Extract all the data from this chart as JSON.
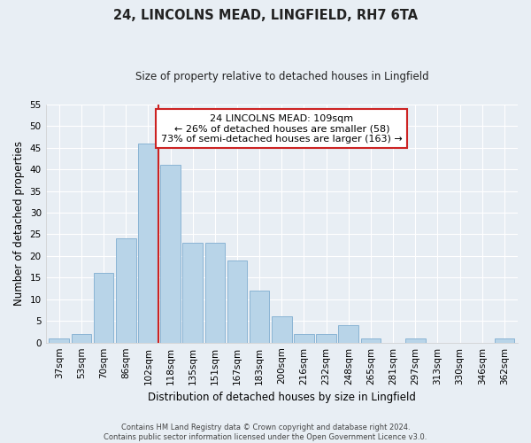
{
  "title": "24, LINCOLNS MEAD, LINGFIELD, RH7 6TA",
  "subtitle": "Size of property relative to detached houses in Lingfield",
  "xlabel": "Distribution of detached houses by size in Lingfield",
  "ylabel": "Number of detached properties",
  "bar_labels": [
    "37sqm",
    "53sqm",
    "70sqm",
    "86sqm",
    "102sqm",
    "118sqm",
    "135sqm",
    "151sqm",
    "167sqm",
    "183sqm",
    "200sqm",
    "216sqm",
    "232sqm",
    "248sqm",
    "265sqm",
    "281sqm",
    "297sqm",
    "313sqm",
    "330sqm",
    "346sqm",
    "362sqm"
  ],
  "bar_values": [
    1,
    2,
    16,
    24,
    46,
    41,
    23,
    23,
    19,
    12,
    6,
    2,
    2,
    4,
    1,
    0,
    1,
    0,
    0,
    0,
    1
  ],
  "bar_color": "#b8d4e8",
  "bar_edge_color": "#8ab4d4",
  "marker_line_color": "#cc2222",
  "ylim": [
    0,
    55
  ],
  "yticks": [
    0,
    5,
    10,
    15,
    20,
    25,
    30,
    35,
    40,
    45,
    50,
    55
  ],
  "annotation_line1": "24 LINCOLNS MEAD: 109sqm",
  "annotation_line2": "← 26% of detached houses are smaller (58)",
  "annotation_line3": "73% of semi-detached houses are larger (163) →",
  "annotation_box_color": "#ffffff",
  "annotation_box_edge_color": "#cc2222",
  "footer_line1": "Contains HM Land Registry data © Crown copyright and database right 2024.",
  "footer_line2": "Contains public sector information licensed under the Open Government Licence v3.0.",
  "background_color": "#e8eef4",
  "grid_color": "#ffffff",
  "title_fontsize": 10.5,
  "subtitle_fontsize": 8.5,
  "tick_fontsize": 7.5,
  "ylabel_fontsize": 8.5,
  "xlabel_fontsize": 8.5,
  "annotation_fontsize": 8.0,
  "footer_fontsize": 6.0
}
